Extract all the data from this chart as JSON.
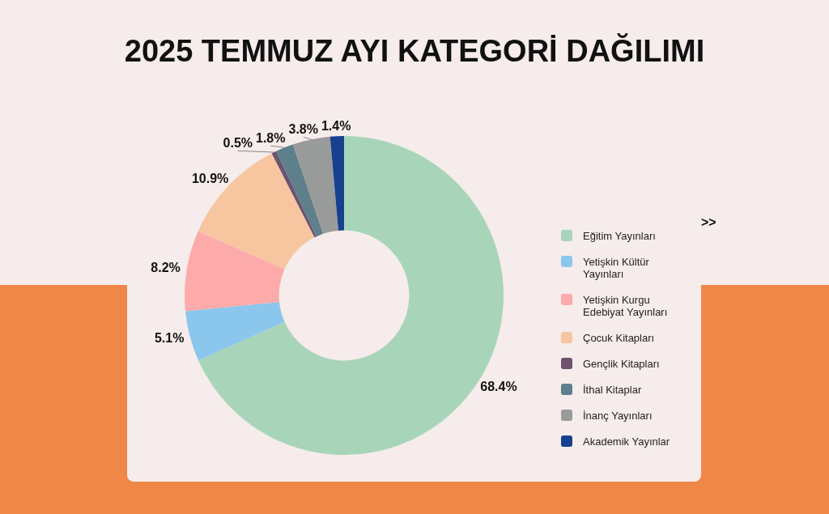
{
  "chart_data": {
    "type": "donut",
    "title": "2025 TEMMUZ AYI KATEGORİ DAĞILIMI",
    "categories": [
      "Eğitim Yayınları",
      "Yetişkin Kültür Yayınları",
      "Yetişkin Kurgu Edebiyat Yayınları",
      "Çocuk Kitapları",
      "Gençlik Kitapları",
      "İthal Kitaplar",
      "İnanç Yayınları",
      "Akademik Yayınlar"
    ],
    "values": [
      68.4,
      5.1,
      8.2,
      10.9,
      0.5,
      1.8,
      3.8,
      1.4
    ],
    "value_labels": [
      "68.4%",
      "5.1%",
      "8.2%",
      "10.9%",
      "0.5%",
      "1.8%",
      "3.8%",
      "1.4%"
    ],
    "colors": [
      "#a8d5b9",
      "#8bc6ec",
      "#fdaaaa",
      "#f7c6a0",
      "#6d5370",
      "#5e7f8c",
      "#999b9a",
      "#17418f"
    ],
    "legend": "right",
    "annotations": [
      ">>"
    ]
  }
}
